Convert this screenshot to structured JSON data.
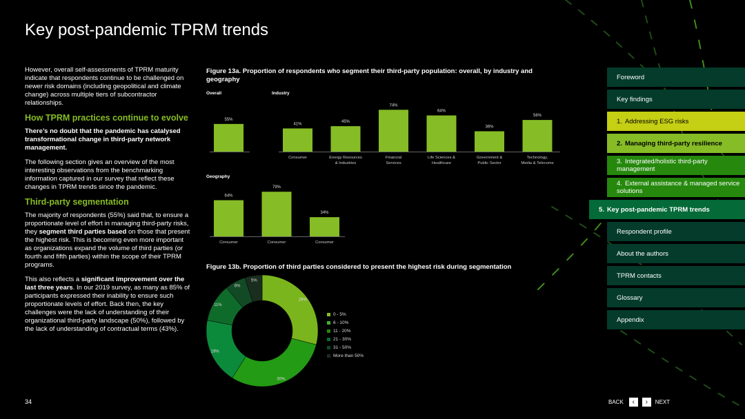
{
  "page": {
    "title": "Key post-pandemic TPRM trends",
    "number": "34",
    "back_label": "BACK",
    "next_label": "NEXT",
    "back_icon": "‹",
    "next_icon": "›"
  },
  "left": {
    "intro": "However, overall self-assessments of TPRM maturity indicate that respondents continue to be challenged on newer risk domains (including geopolitical and climate change) across multiple tiers of subcontractor relationships.",
    "h1": "How TPRM practices continue to evolve",
    "lead": "There’s no doubt that the pandemic has catalysed transformational change in third-party network management.",
    "p2": "The following section gives an overview of the most interesting observations from the benchmarking information captured in our survey that reflect these changes in TPRM trends since the pandemic.",
    "h2": "Third-party segmentation",
    "p3_a": "The majority of respondents (55%) said that, to ensure a proportionate level of effort in managing third-party risks, they ",
    "p3_bold": "segment third parties based",
    "p3_b": " on those that present the highest risk. This is becoming even more important as organizations expand the volume of third parties (or fourth and fifth parties) within the scope of their TPRM programs.",
    "p4_a": "This also reflects a ",
    "p4_bold": "significant improvement over the last three years",
    "p4_b": ". In our 2019 survey, as many as 85% of participants expressed their inability to ensure such proportionate levels of effort. Back then, the key challenges were the lack of understanding of their organizational third-party landscape (50%), followed by the lack of understanding of contractual terms (43%)."
  },
  "fig13a": {
    "title": "Figure 13a. Proportion of respondents who segment their third-party population: overall, by industry and geography",
    "overall_label": "Overall",
    "industry_label": "Industry",
    "geography_label": "Geography"
  },
  "fig13b": {
    "title": "Figure 13b. Proportion of third parties considered to present the highest risk during segmentation"
  },
  "chart_data": [
    {
      "type": "bar",
      "name": "Overall",
      "categories": [
        ""
      ],
      "values": [
        55
      ],
      "labels": [
        "55%"
      ]
    },
    {
      "type": "bar",
      "name": "Industry",
      "categories": [
        "Consumer",
        "Energy Resources & Industries",
        "Financial Services",
        "Life Sciences & Healthcare",
        "Government & Public Sector",
        "Technology, Media & Telecoms"
      ],
      "values": [
        41,
        45,
        74,
        64,
        36,
        56
      ],
      "labels": [
        "41%",
        "45%",
        "74%",
        "64%",
        "36%",
        "56%"
      ]
    },
    {
      "type": "bar",
      "name": "Geography",
      "categories": [
        "Consumer",
        "Consumer",
        "Consumer"
      ],
      "values": [
        64,
        79,
        34
      ],
      "labels": [
        "64%",
        "79%",
        "34%"
      ]
    },
    {
      "type": "pie",
      "categories": [
        "0 - 5%",
        "6 - 10%",
        "11 - 20%",
        "21 - 30%",
        "31 - 50%",
        "More than 50%"
      ],
      "values": [
        29,
        30,
        19,
        11,
        6,
        5
      ],
      "labels": [
        "29%",
        "30%",
        "19%",
        "11%",
        "6%",
        "5%"
      ],
      "colors": [
        "#7ab51d",
        "#239b14",
        "#0c8a3c",
        "#0f6b2a",
        "#134a26",
        "#1a2e1f"
      ]
    }
  ],
  "legend_colors": [
    "#86bc25",
    "#43b02a",
    "#26890d",
    "#046a38",
    "#0d4a2a",
    "#1f2b22"
  ],
  "nav": [
    {
      "label": "Foreword",
      "num": "",
      "style": "dark"
    },
    {
      "label": "Key findings",
      "num": "",
      "style": "dark"
    },
    {
      "label": "Addressing ESG risks",
      "num": "1.",
      "style": "yellow"
    },
    {
      "label": "Managing third-party resilience",
      "num": "2.",
      "style": "lgreen"
    },
    {
      "label": "Integrated/holistic third-party management",
      "num": "3.",
      "style": "mgreen"
    },
    {
      "label": "External assistance & managed service solutions",
      "num": "4.",
      "style": "mgreen"
    },
    {
      "label": "Key post-pandemic TPRM trends",
      "num": "5.",
      "style": "active"
    },
    {
      "label": "Respondent profile",
      "num": "",
      "style": "dark"
    },
    {
      "label": "About the authors",
      "num": "",
      "style": "dark"
    },
    {
      "label": "TPRM contacts",
      "num": "",
      "style": "dark"
    },
    {
      "label": "Glossary",
      "num": "",
      "style": "dark"
    },
    {
      "label": "Appendix",
      "num": "",
      "style": "dark"
    }
  ]
}
